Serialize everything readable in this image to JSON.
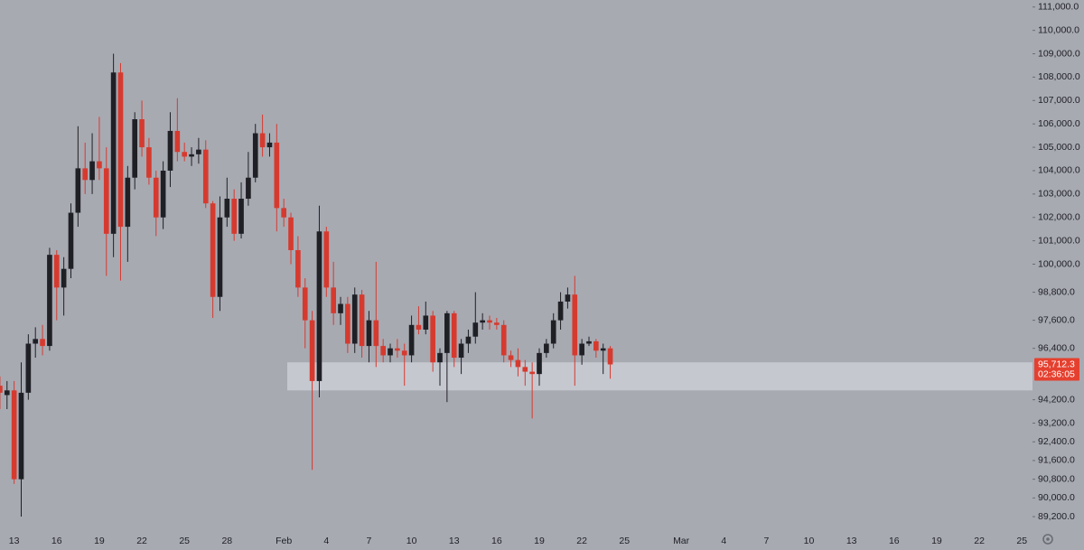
{
  "chart_data": {
    "type": "candlestick",
    "categories": [
      null,
      null,
      "13",
      null,
      null,
      null,
      null,
      null,
      "16",
      null,
      null,
      null,
      null,
      null,
      "19",
      null,
      null,
      null,
      null,
      null,
      "22",
      null,
      null,
      null,
      null,
      null,
      "25",
      null,
      null,
      null,
      null,
      null,
      "28",
      null,
      null,
      null,
      null,
      null,
      null,
      null,
      "Feb",
      null,
      null,
      null,
      null,
      null,
      "4",
      null,
      null,
      null,
      null,
      null,
      "7",
      null,
      null,
      null,
      null,
      null,
      "10",
      null,
      null,
      null,
      null,
      null,
      "13",
      null,
      null,
      null,
      null,
      null,
      "16",
      null,
      null,
      null,
      null,
      null,
      "19",
      null,
      null,
      null,
      null,
      null,
      "22",
      null,
      null,
      null,
      null,
      null,
      "25",
      null,
      null,
      null,
      null,
      null,
      null,
      null,
      "Mar",
      null,
      null,
      null,
      null,
      null,
      "4",
      null,
      null,
      null,
      null,
      null,
      "7",
      null,
      null,
      null,
      null,
      null,
      "10",
      null,
      null,
      null,
      null,
      null,
      "13",
      null,
      null,
      null,
      null,
      null,
      "16",
      null,
      null,
      null,
      null,
      null,
      "19",
      null,
      null,
      null,
      null,
      null,
      "22",
      null,
      null,
      null,
      null,
      null,
      "25",
      null
    ],
    "open": [
      94800,
      94400,
      94600,
      90800,
      94500,
      96600,
      96800,
      96500,
      100400,
      99000,
      99800,
      102200,
      104100,
      103600,
      104400,
      104100,
      101300,
      108200,
      101600,
      103700,
      106200,
      105000,
      103700,
      102000,
      104000,
      105700,
      104800,
      104600,
      104700,
      104900,
      102600,
      98600,
      102000,
      102800,
      101300,
      102800,
      103700,
      105600,
      105000,
      105200,
      102400,
      102000,
      100600,
      99000,
      97600,
      95000,
      101400,
      99000,
      97900,
      98300,
      96600,
      98700,
      96500,
      97600,
      96500,
      96100,
      96400,
      96300,
      96100,
      97400,
      97200,
      97800,
      95800,
      96200,
      97900,
      96000,
      96600,
      96900,
      97500,
      97600,
      97500,
      97400,
      96100,
      95900,
      95600,
      95400,
      95300,
      96200,
      96600,
      97600,
      98400,
      98700,
      96100,
      96600,
      96700,
      96300,
      96400,
      null,
      null,
      null,
      null,
      null,
      null,
      null,
      null,
      null,
      null,
      null,
      null,
      null,
      null,
      null,
      null,
      null,
      null,
      null,
      null,
      null,
      null,
      null,
      null,
      null,
      null,
      null,
      null,
      null,
      null,
      null,
      null,
      null,
      null,
      null,
      null,
      null,
      null,
      null,
      null,
      null,
      null,
      null,
      null,
      null,
      null,
      null,
      null,
      null,
      null,
      null,
      null,
      null,
      null,
      null,
      null,
      null,
      null,
      null
    ],
    "high": [
      95200,
      95000,
      95000,
      95800,
      97000,
      97300,
      97400,
      100700,
      100600,
      100300,
      102600,
      105900,
      105200,
      105600,
      106300,
      105000,
      109000,
      108600,
      104200,
      106500,
      107000,
      105400,
      104000,
      104400,
      106500,
      107100,
      105200,
      105000,
      105400,
      105300,
      102700,
      102900,
      103700,
      103200,
      103500,
      104800,
      106000,
      106400,
      105600,
      106000,
      102800,
      102200,
      101200,
      99400,
      98000,
      102500,
      101600,
      100100,
      98600,
      98600,
      99000,
      98900,
      98000,
      100100,
      96800,
      96600,
      96800,
      96600,
      97800,
      98200,
      98400,
      98000,
      96400,
      98000,
      98000,
      96800,
      97200,
      98800,
      97900,
      97800,
      97700,
      97600,
      96300,
      96400,
      95900,
      95800,
      96400,
      96800,
      97900,
      98800,
      99000,
      99500,
      96800,
      96900,
      96800,
      96600,
      96500,
      null,
      null,
      null,
      null,
      null,
      null,
      null,
      null,
      null,
      null,
      null,
      null,
      null,
      null,
      null,
      null,
      null,
      null,
      null,
      null,
      null,
      null,
      null,
      null,
      null,
      null,
      null,
      null,
      null,
      null,
      null,
      null,
      null,
      null,
      null,
      null,
      null,
      null,
      null,
      null,
      null,
      null,
      null,
      null,
      null,
      null,
      null,
      null,
      null,
      null,
      null,
      null,
      null,
      null,
      null,
      null,
      null,
      null,
      null
    ],
    "low": [
      93800,
      93800,
      90600,
      89200,
      94200,
      96000,
      96100,
      96300,
      97600,
      97800,
      99400,
      101600,
      103000,
      103000,
      103600,
      99500,
      100300,
      99300,
      100100,
      103200,
      104600,
      103400,
      101200,
      101500,
      103300,
      104400,
      104400,
      104200,
      104300,
      102400,
      97700,
      98000,
      101600,
      101000,
      101100,
      102500,
      103500,
      104600,
      104600,
      101400,
      101600,
      100000,
      98600,
      96400,
      91200,
      94300,
      98600,
      97400,
      97400,
      96200,
      96200,
      96000,
      95800,
      95600,
      95800,
      95800,
      96000,
      94800,
      95800,
      97000,
      97000,
      95400,
      94800,
      94100,
      95600,
      95300,
      96200,
      96600,
      97200,
      97200,
      97200,
      95800,
      95600,
      95200,
      94800,
      93400,
      94800,
      96000,
      96400,
      97200,
      98100,
      94800,
      95700,
      96500,
      96000,
      95300,
      95100,
      null,
      null,
      null,
      null,
      null,
      null,
      null,
      null,
      null,
      null,
      null,
      null,
      null,
      null,
      null,
      null,
      null,
      null,
      null,
      null,
      null,
      null,
      null,
      null,
      null,
      null,
      null,
      null,
      null,
      null,
      null,
      null,
      null,
      null,
      null,
      null,
      null,
      null,
      null,
      null,
      null,
      null,
      null,
      null,
      null,
      null,
      null,
      null,
      null,
      null,
      null,
      null,
      null,
      null,
      null,
      null,
      null,
      null,
      null
    ],
    "close": [
      94500,
      94600,
      90800,
      94500,
      96600,
      96800,
      96500,
      100400,
      99000,
      99800,
      102200,
      104100,
      103600,
      104400,
      104100,
      101300,
      108200,
      101600,
      103700,
      106200,
      105000,
      103700,
      102000,
      104000,
      105700,
      104800,
      104600,
      104700,
      104900,
      102600,
      98600,
      102000,
      102800,
      101300,
      102800,
      103700,
      105600,
      105000,
      105200,
      102400,
      102000,
      100600,
      99000,
      97600,
      95000,
      101400,
      99000,
      97900,
      98300,
      96600,
      98700,
      96500,
      97600,
      96500,
      96100,
      96400,
      96300,
      96100,
      97400,
      97200,
      97800,
      95800,
      96200,
      97900,
      96000,
      96600,
      96900,
      97500,
      97600,
      97500,
      97400,
      96100,
      95900,
      95600,
      95400,
      95300,
      96200,
      96600,
      97600,
      98400,
      98700,
      96100,
      96600,
      96700,
      96300,
      96400,
      95712.3,
      null,
      null,
      null,
      null,
      null,
      null,
      null,
      null,
      null,
      null,
      null,
      null,
      null,
      null,
      null,
      null,
      null,
      null,
      null,
      null,
      null,
      null,
      null,
      null,
      null,
      null,
      null,
      null,
      null,
      null,
      null,
      null,
      null,
      null,
      null,
      null,
      null,
      null,
      null,
      null,
      null,
      null,
      null,
      null,
      null,
      null,
      null,
      null,
      null,
      null,
      null,
      null,
      null,
      null,
      null,
      null,
      null,
      null,
      null
    ],
    "up_color": "#1f2026",
    "down_color": "#d63a2f",
    "ylim": [
      88700,
      111300
    ],
    "yticks": [
      {
        "value": 111000,
        "label": "111,000.0"
      },
      {
        "value": 110000,
        "label": "110,000.0"
      },
      {
        "value": 109000,
        "label": "109,000.0"
      },
      {
        "value": 108000,
        "label": "108,000.0"
      },
      {
        "value": 107000,
        "label": "107,000.0"
      },
      {
        "value": 106000,
        "label": "106,000.0"
      },
      {
        "value": 105000,
        "label": "105,000.0"
      },
      {
        "value": 104000,
        "label": "104,000.0"
      },
      {
        "value": 103000,
        "label": "103,000.0"
      },
      {
        "value": 102000,
        "label": "102,000.0"
      },
      {
        "value": 101000,
        "label": "101,000.0"
      },
      {
        "value": 100000,
        "label": "100,000.0"
      },
      {
        "value": 98800,
        "label": "98,800.0"
      },
      {
        "value": 97600,
        "label": "97,600.0"
      },
      {
        "value": 96400,
        "label": "96,400.0"
      },
      {
        "value": 94200,
        "label": "94,200.0"
      },
      {
        "value": 93200,
        "label": "93,200.0"
      },
      {
        "value": 92400,
        "label": "92,400.0"
      },
      {
        "value": 91600,
        "label": "91,600.0"
      },
      {
        "value": 90800,
        "label": "90,800.0"
      },
      {
        "value": 90000,
        "label": "90,000.0"
      },
      {
        "value": 89200,
        "label": "89,200.0"
      }
    ],
    "grid": false,
    "highlight_range": [
      94600,
      95800
    ],
    "last_price": {
      "value": 95712.3,
      "label": "95,712.3",
      "color": "#e5402f"
    },
    "countdown": "02:36:05"
  }
}
